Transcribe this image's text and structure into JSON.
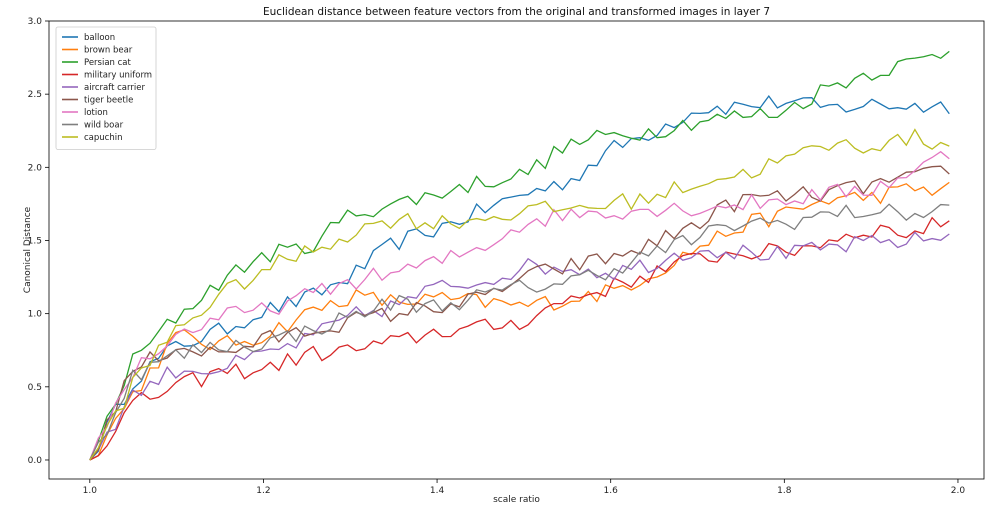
{
  "chart_data": {
    "type": "line",
    "title": "Euclidean distance between feature vectors from the original and transformed images in layer 7",
    "xlabel": "scale ratio",
    "ylabel": "Canonical Distance",
    "xlim": [
      0.953,
      2.03
    ],
    "ylim": [
      -0.13,
      3.0
    ],
    "xticks": [
      1.0,
      1.2,
      1.4,
      1.6,
      1.8,
      2.0
    ],
    "xtick_labels": [
      "1.0",
      "1.2",
      "1.4",
      "1.6",
      "1.8",
      "2.0"
    ],
    "yticks": [
      0.0,
      0.5,
      1.0,
      1.5,
      2.0,
      2.5,
      3.0
    ],
    "ytick_labels": [
      "0.0",
      "0.5",
      "1.0",
      "1.5",
      "2.0",
      "2.5",
      "3.0"
    ],
    "grid": false,
    "legend_position": "top-left",
    "series": [
      {
        "name": "balloon",
        "color": "#1f77b4",
        "points": [
          [
            1.0,
            0.0
          ],
          [
            1.05,
            0.55
          ],
          [
            1.1,
            0.78
          ],
          [
            1.15,
            0.88
          ],
          [
            1.2,
            1.02
          ],
          [
            1.25,
            1.1
          ],
          [
            1.3,
            1.25
          ],
          [
            1.35,
            1.48
          ],
          [
            1.4,
            1.58
          ],
          [
            1.45,
            1.7
          ],
          [
            1.5,
            1.82
          ],
          [
            1.55,
            1.9
          ],
          [
            1.6,
            2.12
          ],
          [
            1.65,
            2.25
          ],
          [
            1.7,
            2.4
          ],
          [
            1.75,
            2.42
          ],
          [
            1.8,
            2.45
          ],
          [
            1.85,
            2.4
          ],
          [
            1.9,
            2.43
          ],
          [
            1.95,
            2.42
          ],
          [
            1.99,
            2.42
          ]
        ]
      },
      {
        "name": "brown bear",
        "color": "#ff7f0e",
        "points": [
          [
            1.0,
            0.0
          ],
          [
            1.05,
            0.45
          ],
          [
            1.1,
            0.85
          ],
          [
            1.15,
            0.78
          ],
          [
            1.2,
            0.85
          ],
          [
            1.25,
            1.0
          ],
          [
            1.3,
            1.12
          ],
          [
            1.35,
            1.08
          ],
          [
            1.4,
            1.1
          ],
          [
            1.45,
            1.08
          ],
          [
            1.5,
            1.05
          ],
          [
            1.55,
            1.1
          ],
          [
            1.6,
            1.15
          ],
          [
            1.65,
            1.28
          ],
          [
            1.7,
            1.45
          ],
          [
            1.75,
            1.6
          ],
          [
            1.8,
            1.68
          ],
          [
            1.85,
            1.78
          ],
          [
            1.9,
            1.8
          ],
          [
            1.95,
            1.85
          ],
          [
            1.99,
            1.85
          ]
        ]
      },
      {
        "name": "Persian cat",
        "color": "#2ca02c",
        "points": [
          [
            1.0,
            0.0
          ],
          [
            1.05,
            0.68
          ],
          [
            1.1,
            0.98
          ],
          [
            1.15,
            1.22
          ],
          [
            1.2,
            1.4
          ],
          [
            1.25,
            1.45
          ],
          [
            1.3,
            1.68
          ],
          [
            1.35,
            1.75
          ],
          [
            1.4,
            1.82
          ],
          [
            1.45,
            1.9
          ],
          [
            1.5,
            1.95
          ],
          [
            1.55,
            2.15
          ],
          [
            1.6,
            2.22
          ],
          [
            1.65,
            2.25
          ],
          [
            1.7,
            2.32
          ],
          [
            1.75,
            2.35
          ],
          [
            1.8,
            2.38
          ],
          [
            1.85,
            2.55
          ],
          [
            1.9,
            2.65
          ],
          [
            1.95,
            2.72
          ],
          [
            1.99,
            2.8
          ]
        ]
      },
      {
        "name": "military uniform",
        "color": "#d62728",
        "points": [
          [
            1.0,
            0.0
          ],
          [
            1.05,
            0.38
          ],
          [
            1.1,
            0.5
          ],
          [
            1.15,
            0.6
          ],
          [
            1.2,
            0.62
          ],
          [
            1.25,
            0.72
          ],
          [
            1.3,
            0.75
          ],
          [
            1.35,
            0.8
          ],
          [
            1.4,
            0.88
          ],
          [
            1.45,
            0.9
          ],
          [
            1.5,
            0.95
          ],
          [
            1.55,
            1.1
          ],
          [
            1.6,
            1.18
          ],
          [
            1.65,
            1.28
          ],
          [
            1.7,
            1.38
          ],
          [
            1.75,
            1.42
          ],
          [
            1.8,
            1.42
          ],
          [
            1.85,
            1.5
          ],
          [
            1.9,
            1.58
          ],
          [
            1.95,
            1.55
          ],
          [
            1.99,
            1.65
          ]
        ]
      },
      {
        "name": "aircraft carrier",
        "color": "#9467bd",
        "points": [
          [
            1.0,
            0.0
          ],
          [
            1.05,
            0.45
          ],
          [
            1.1,
            0.62
          ],
          [
            1.15,
            0.62
          ],
          [
            1.2,
            0.72
          ],
          [
            1.25,
            0.82
          ],
          [
            1.3,
            0.98
          ],
          [
            1.35,
            1.05
          ],
          [
            1.4,
            1.18
          ],
          [
            1.45,
            1.22
          ],
          [
            1.5,
            1.32
          ],
          [
            1.55,
            1.32
          ],
          [
            1.6,
            1.28
          ],
          [
            1.65,
            1.35
          ],
          [
            1.7,
            1.45
          ],
          [
            1.75,
            1.42
          ],
          [
            1.8,
            1.4
          ],
          [
            1.85,
            1.45
          ],
          [
            1.9,
            1.48
          ],
          [
            1.95,
            1.5
          ],
          [
            1.99,
            1.53
          ]
        ]
      },
      {
        "name": "tiger beetle",
        "color": "#8c564b",
        "points": [
          [
            1.0,
            0.0
          ],
          [
            1.05,
            0.62
          ],
          [
            1.1,
            0.78
          ],
          [
            1.15,
            0.72
          ],
          [
            1.2,
            0.82
          ],
          [
            1.25,
            0.88
          ],
          [
            1.3,
            0.95
          ],
          [
            1.35,
            1.0
          ],
          [
            1.4,
            1.05
          ],
          [
            1.45,
            1.1
          ],
          [
            1.5,
            1.25
          ],
          [
            1.55,
            1.32
          ],
          [
            1.6,
            1.38
          ],
          [
            1.65,
            1.48
          ],
          [
            1.7,
            1.62
          ],
          [
            1.75,
            1.78
          ],
          [
            1.8,
            1.8
          ],
          [
            1.85,
            1.82
          ],
          [
            1.9,
            1.88
          ],
          [
            1.95,
            1.92
          ],
          [
            1.99,
            2.0
          ]
        ]
      },
      {
        "name": "lotion",
        "color": "#e377c2",
        "points": [
          [
            1.0,
            0.0
          ],
          [
            1.05,
            0.62
          ],
          [
            1.1,
            0.85
          ],
          [
            1.15,
            0.98
          ],
          [
            1.2,
            1.02
          ],
          [
            1.25,
            1.12
          ],
          [
            1.3,
            1.22
          ],
          [
            1.35,
            1.28
          ],
          [
            1.4,
            1.35
          ],
          [
            1.45,
            1.45
          ],
          [
            1.5,
            1.62
          ],
          [
            1.55,
            1.68
          ],
          [
            1.6,
            1.7
          ],
          [
            1.65,
            1.72
          ],
          [
            1.7,
            1.72
          ],
          [
            1.75,
            1.75
          ],
          [
            1.8,
            1.78
          ],
          [
            1.85,
            1.82
          ],
          [
            1.9,
            1.85
          ],
          [
            1.95,
            1.98
          ],
          [
            1.99,
            2.1
          ]
        ]
      },
      {
        "name": "wild boar",
        "color": "#7f7f7f",
        "points": [
          [
            1.0,
            0.0
          ],
          [
            1.05,
            0.58
          ],
          [
            1.1,
            0.72
          ],
          [
            1.15,
            0.78
          ],
          [
            1.2,
            0.8
          ],
          [
            1.25,
            0.88
          ],
          [
            1.3,
            0.98
          ],
          [
            1.35,
            1.08
          ],
          [
            1.4,
            1.05
          ],
          [
            1.45,
            1.12
          ],
          [
            1.5,
            1.18
          ],
          [
            1.55,
            1.22
          ],
          [
            1.6,
            1.3
          ],
          [
            1.65,
            1.42
          ],
          [
            1.7,
            1.52
          ],
          [
            1.75,
            1.62
          ],
          [
            1.8,
            1.62
          ],
          [
            1.85,
            1.68
          ],
          [
            1.9,
            1.7
          ],
          [
            1.95,
            1.68
          ],
          [
            1.99,
            1.72
          ]
        ]
      },
      {
        "name": "capuchin",
        "color": "#bcbd22",
        "points": [
          [
            1.0,
            0.0
          ],
          [
            1.05,
            0.52
          ],
          [
            1.1,
            0.9
          ],
          [
            1.15,
            1.12
          ],
          [
            1.2,
            1.3
          ],
          [
            1.25,
            1.42
          ],
          [
            1.3,
            1.55
          ],
          [
            1.35,
            1.65
          ],
          [
            1.4,
            1.62
          ],
          [
            1.45,
            1.65
          ],
          [
            1.5,
            1.7
          ],
          [
            1.55,
            1.72
          ],
          [
            1.6,
            1.75
          ],
          [
            1.65,
            1.8
          ],
          [
            1.7,
            1.9
          ],
          [
            1.75,
            1.95
          ],
          [
            1.8,
            2.05
          ],
          [
            1.85,
            2.15
          ],
          [
            1.9,
            2.15
          ],
          [
            1.95,
            2.2
          ],
          [
            1.99,
            2.15
          ]
        ]
      }
    ]
  }
}
